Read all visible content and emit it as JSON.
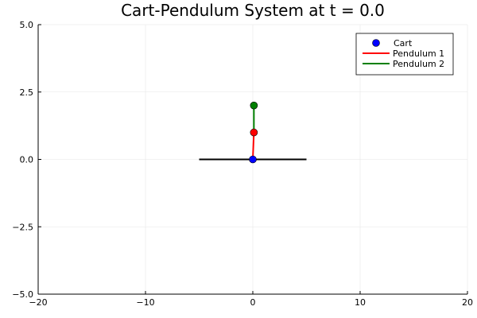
{
  "chart_data": {
    "type": "line",
    "title": "Cart-Pendulum System at t = 0.0",
    "xlabel": "",
    "ylabel": "",
    "xlim": [
      -20,
      20
    ],
    "ylim": [
      -5,
      5
    ],
    "x_ticks": [
      -20,
      -10,
      0,
      10,
      20
    ],
    "y_ticks": [
      -5,
      -2.5,
      0,
      2.5,
      5
    ],
    "x_tick_labels": [
      "−20",
      "−10",
      "0",
      "10",
      "20"
    ],
    "y_tick_labels": [
      "−5.0",
      "−2.5",
      "0.0",
      "2.5",
      "5.0"
    ],
    "grid": true,
    "legend_position": "top-right",
    "track": {
      "x": [
        -5,
        5
      ],
      "y": [
        0,
        0
      ],
      "color": "#000000"
    },
    "series": [
      {
        "name": "Cart",
        "kind": "scatter",
        "color": "#0000ff",
        "x": [
          0
        ],
        "y": [
          0
        ]
      },
      {
        "name": "Pendulum 1",
        "kind": "line",
        "color": "#ff0000",
        "x": [
          0,
          0.1
        ],
        "y": [
          0,
          1
        ]
      },
      {
        "name": "Pendulum 2",
        "kind": "line",
        "color": "#008000",
        "x": [
          0.1,
          0.1
        ],
        "y": [
          1,
          2
        ]
      }
    ],
    "pendulum_bobs": [
      {
        "x": 0.1,
        "y": 1,
        "color": "#ff0000"
      },
      {
        "x": 0.1,
        "y": 2,
        "color": "#008000"
      }
    ]
  }
}
